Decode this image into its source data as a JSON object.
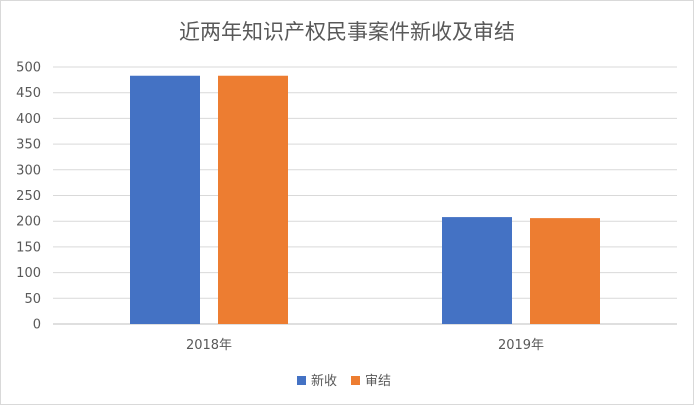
{
  "chart_data": {
    "type": "bar",
    "title": "近两年知识产权民事案件新收及审结",
    "categories": [
      "2018年",
      "2019年"
    ],
    "series": [
      {
        "name": "新收",
        "values": [
          483,
          208
        ],
        "color": "#4472C4"
      },
      {
        "name": "审结",
        "values": [
          483,
          206
        ],
        "color": "#ED7D31"
      }
    ],
    "ylim": [
      0,
      500
    ],
    "yticks": [
      0,
      50,
      100,
      150,
      200,
      250,
      300,
      350,
      400,
      450,
      500
    ],
    "grid": true,
    "legend_position": "bottom",
    "xlabel": "",
    "ylabel": ""
  }
}
